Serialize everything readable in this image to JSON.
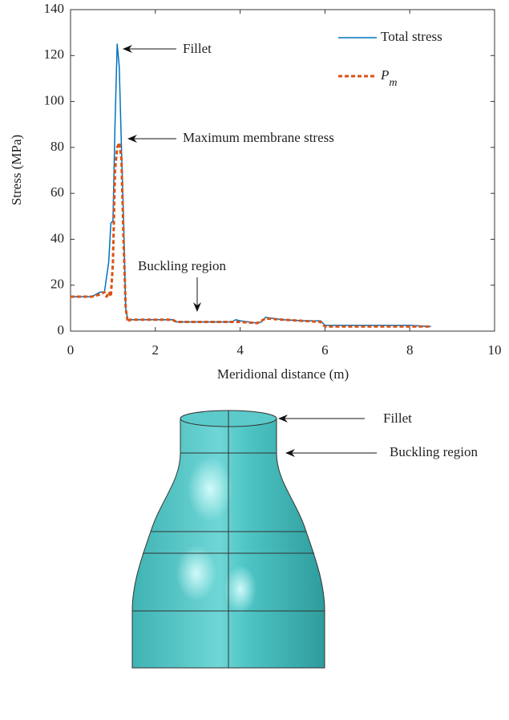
{
  "chart_data": {
    "type": "line",
    "xlabel": "Meridional distance (m)",
    "ylabel": "Stress (MPa)",
    "xlim": [
      0,
      10
    ],
    "xticks": [
      0,
      2,
      4,
      6,
      8,
      10
    ],
    "ylim": [
      0,
      140
    ],
    "yticks": [
      0,
      20,
      40,
      60,
      80,
      100,
      120,
      140
    ],
    "legend": "upper right",
    "series": [
      {
        "name": "Total stress",
        "color": "#0072bd",
        "dashed": false,
        "x": [
          0,
          0.5,
          0.7,
          0.8,
          0.9,
          0.95,
          1.0,
          1.05,
          1.1,
          1.15,
          1.2,
          1.25,
          1.3,
          1.35,
          1.5,
          2.0,
          2.4,
          2.5,
          3.0,
          3.5,
          3.8,
          3.9,
          4.0,
          4.2,
          4.4,
          4.5,
          4.6,
          4.8,
          5.0,
          5.5,
          5.9,
          6.0,
          6.5,
          7.0,
          8.0,
          8.5
        ],
        "values": [
          15,
          15,
          17,
          17,
          30,
          47,
          48,
          90,
          125,
          115,
          80,
          50,
          10,
          5,
          5,
          5,
          5,
          4,
          4,
          4,
          4,
          5,
          4.5,
          4,
          3.5,
          4,
          6,
          5.5,
          5,
          4.5,
          4.5,
          2.5,
          2.5,
          2.5,
          2.5,
          2
        ]
      },
      {
        "name": "P",
        "name_subscript": "m",
        "color": "#d95319",
        "dashed": true,
        "x": [
          0,
          0.5,
          0.7,
          0.8,
          0.85,
          0.9,
          0.95,
          1.0,
          1.05,
          1.1,
          1.15,
          1.2,
          1.25,
          1.3,
          1.35,
          1.4,
          2.0,
          2.4,
          2.5,
          4.0,
          4.4,
          4.6,
          5.0,
          5.9,
          6.0,
          8.5
        ],
        "values": [
          15,
          15,
          16,
          17,
          15,
          17,
          15,
          30,
          70,
          80,
          82,
          75,
          40,
          10,
          4,
          5,
          5,
          5,
          4,
          4,
          3.5,
          5.5,
          5,
          4,
          2,
          2
        ]
      }
    ],
    "annotations": [
      "Fillet",
      "Maximum membrane stress",
      "Buckling region"
    ]
  },
  "figure": {
    "labels": [
      "Fillet",
      "Buckling region"
    ]
  }
}
